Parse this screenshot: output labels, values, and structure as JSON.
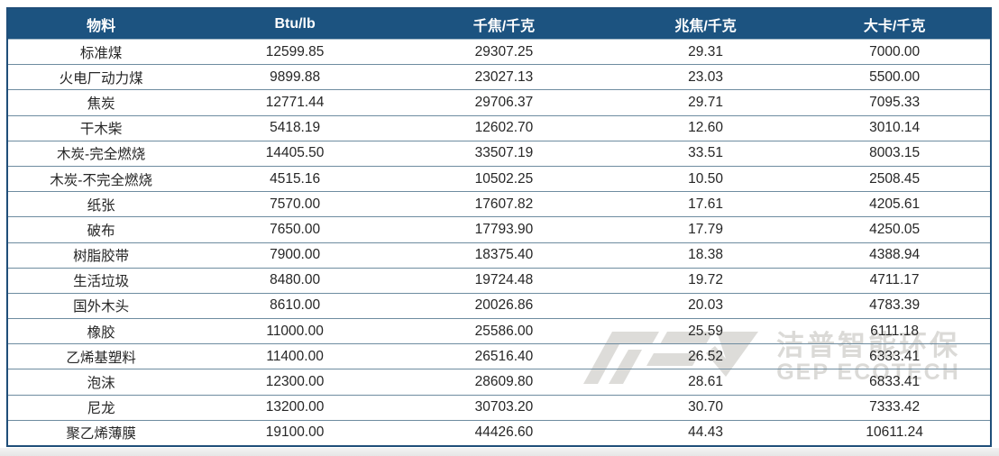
{
  "table": {
    "name": "material-calorific-values",
    "columns": [
      "物料",
      "Btu/lb",
      "千焦/千克",
      "兆焦/千克",
      "大卡/千克"
    ],
    "rows": [
      [
        "标准煤",
        "12599.85",
        "29307.25",
        "29.31",
        "7000.00"
      ],
      [
        "火电厂动力煤",
        "9899.88",
        "23027.13",
        "23.03",
        "5500.00"
      ],
      [
        "焦炭",
        "12771.44",
        "29706.37",
        "29.71",
        "7095.33"
      ],
      [
        "干木柴",
        "5418.19",
        "12602.70",
        "12.60",
        "3010.14"
      ],
      [
        "木炭-完全燃烧",
        "14405.50",
        "33507.19",
        "33.51",
        "8003.15"
      ],
      [
        "木炭-不完全燃烧",
        "4515.16",
        "10502.25",
        "10.50",
        "2508.45"
      ],
      [
        "纸张",
        "7570.00",
        "17607.82",
        "17.61",
        "4205.61"
      ],
      [
        "破布",
        "7650.00",
        "17793.90",
        "17.79",
        "4250.05"
      ],
      [
        "树脂胶带",
        "7900.00",
        "18375.40",
        "18.38",
        "4388.94"
      ],
      [
        "生活垃圾",
        "8480.00",
        "19724.48",
        "19.72",
        "4711.17"
      ],
      [
        "国外木头",
        "8610.00",
        "20026.86",
        "20.03",
        "4783.39"
      ],
      [
        "橡胶",
        "11000.00",
        "25586.00",
        "25.59",
        "6111.18"
      ],
      [
        "乙烯基塑料",
        "11400.00",
        "26516.40",
        "26.52",
        "6333.41"
      ],
      [
        "泡沫",
        "12300.00",
        "28609.80",
        "28.61",
        "6833.41"
      ],
      [
        "尼龙",
        "13200.00",
        "30703.20",
        "30.70",
        "7333.42"
      ],
      [
        "聚乙烯薄膜",
        "19100.00",
        "44426.60",
        "44.43",
        "10611.24"
      ]
    ]
  },
  "watermark": {
    "cn": "洁普智能环保",
    "en": "GEP ECOTECH",
    "logo_icon": "gep-ecotech-logo"
  },
  "colors": {
    "header_bg": "#1C5380",
    "outer_border": "#1F4E79",
    "row_line": "#6E8CA0",
    "body_text": "#262626",
    "watermark_gray": "rgba(165,162,156,0.40)"
  }
}
